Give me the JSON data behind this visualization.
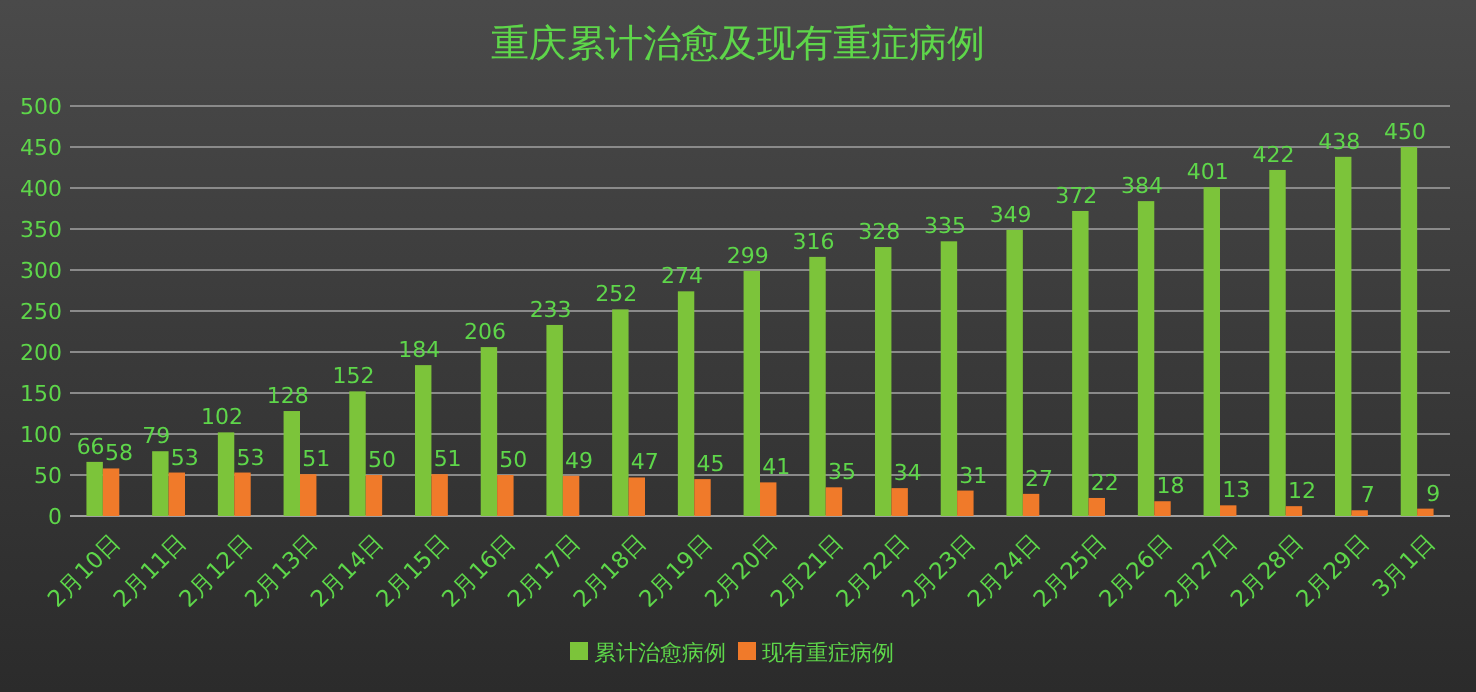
{
  "chart_data": {
    "type": "bar",
    "title": "重庆累计治愈及现有重症病例",
    "categories": [
      "2月10日",
      "2月11日",
      "2月12日",
      "2月13日",
      "2月14日",
      "2月15日",
      "2月16日",
      "2月17日",
      "2月18日",
      "2月19日",
      "2月20日",
      "2月21日",
      "2月22日",
      "2月23日",
      "2月24日",
      "2月25日",
      "2月26日",
      "2月27日",
      "2月28日",
      "2月29日",
      "3月1日"
    ],
    "series": [
      {
        "name": "累计治愈病例",
        "color": "#7cc43a",
        "values": [
          66,
          79,
          102,
          128,
          152,
          184,
          206,
          233,
          252,
          274,
          299,
          316,
          328,
          335,
          349,
          372,
          384,
          401,
          422,
          438,
          450
        ]
      },
      {
        "name": "现有重症病例",
        "color": "#f07a2a",
        "values": [
          58,
          53,
          53,
          51,
          50,
          51,
          50,
          49,
          47,
          45,
          41,
          35,
          34,
          31,
          27,
          22,
          18,
          13,
          12,
          7,
          9
        ]
      }
    ],
    "ylim": [
      0,
      500
    ],
    "yticks": [
      0,
      50,
      100,
      150,
      200,
      250,
      300,
      350,
      400,
      450,
      500
    ],
    "grid": "y",
    "legend": "bottom",
    "data_labels": true
  }
}
